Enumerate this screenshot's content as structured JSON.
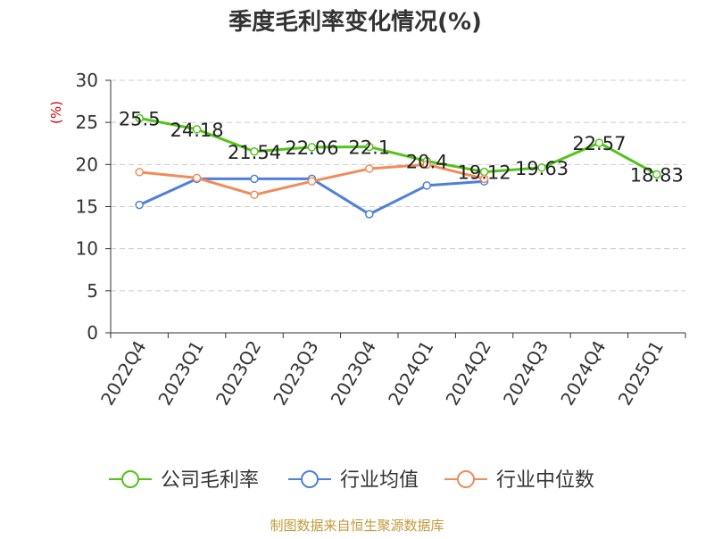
{
  "colors": {
    "company": "#52c41a",
    "industry_avg": "#4f7fdd",
    "industry_median": "#f08c5a",
    "ylabel": "#cc0000",
    "source": "#c39a3c",
    "grid": "#cccccc",
    "axis": "#333333"
  },
  "source": "制图数据来自恒生聚源数据库",
  "chart_data": {
    "type": "line",
    "title": "季度毛利率变化情况(%)",
    "xlabel": "",
    "ylabel": "(%)",
    "ylim": [
      0,
      30
    ],
    "yticks": [
      0,
      5,
      10,
      15,
      20,
      25,
      30
    ],
    "grid": "horizontal dashed",
    "legend": "bottom",
    "categories": [
      "2022Q4",
      "2023Q1",
      "2023Q2",
      "2023Q3",
      "2023Q4",
      "2024Q1",
      "2024Q2",
      "2024Q3",
      "2024Q4",
      "2025Q1"
    ],
    "series": [
      {
        "name": "公司毛利率",
        "color_key": "company",
        "values": [
          25.5,
          24.18,
          21.54,
          22.06,
          22.1,
          20.4,
          19.12,
          19.63,
          22.57,
          18.83
        ],
        "labels": [
          "25.5",
          "24.18",
          "21.54",
          "22.06",
          "22.1",
          "20.4",
          "19.12",
          "19.63",
          "22.57",
          "18.83"
        ]
      },
      {
        "name": "行业均值",
        "color_key": "industry_avg",
        "values": [
          15.2,
          18.3,
          18.3,
          18.3,
          14.1,
          17.5,
          18.0,
          null,
          null,
          null
        ]
      },
      {
        "name": "行业中位数",
        "color_key": "industry_median",
        "values": [
          19.1,
          18.4,
          16.4,
          18.0,
          19.5,
          20.0,
          18.3,
          null,
          null,
          null
        ]
      }
    ]
  }
}
